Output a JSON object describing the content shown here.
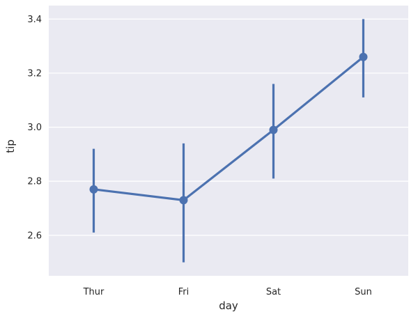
{
  "chart_data": {
    "type": "line",
    "xlabel": "day",
    "ylabel": "tip",
    "categories": [
      "Thur",
      "Fri",
      "Sat",
      "Sun"
    ],
    "series": [
      {
        "values": [
          2.77,
          2.73,
          2.99,
          3.26
        ],
        "ci_low": [
          2.61,
          2.5,
          2.81,
          3.11
        ],
        "ci_high": [
          2.92,
          2.94,
          3.16,
          3.4
        ]
      }
    ],
    "ylim": [
      2.45,
      3.45
    ],
    "yticks": [
      "2.6",
      "2.8",
      "3.0",
      "3.2",
      "3.4"
    ],
    "grid": true,
    "colors": {
      "background": "#eaeaf2",
      "series": "#4c72b0",
      "grid": "#ffffff"
    }
  }
}
